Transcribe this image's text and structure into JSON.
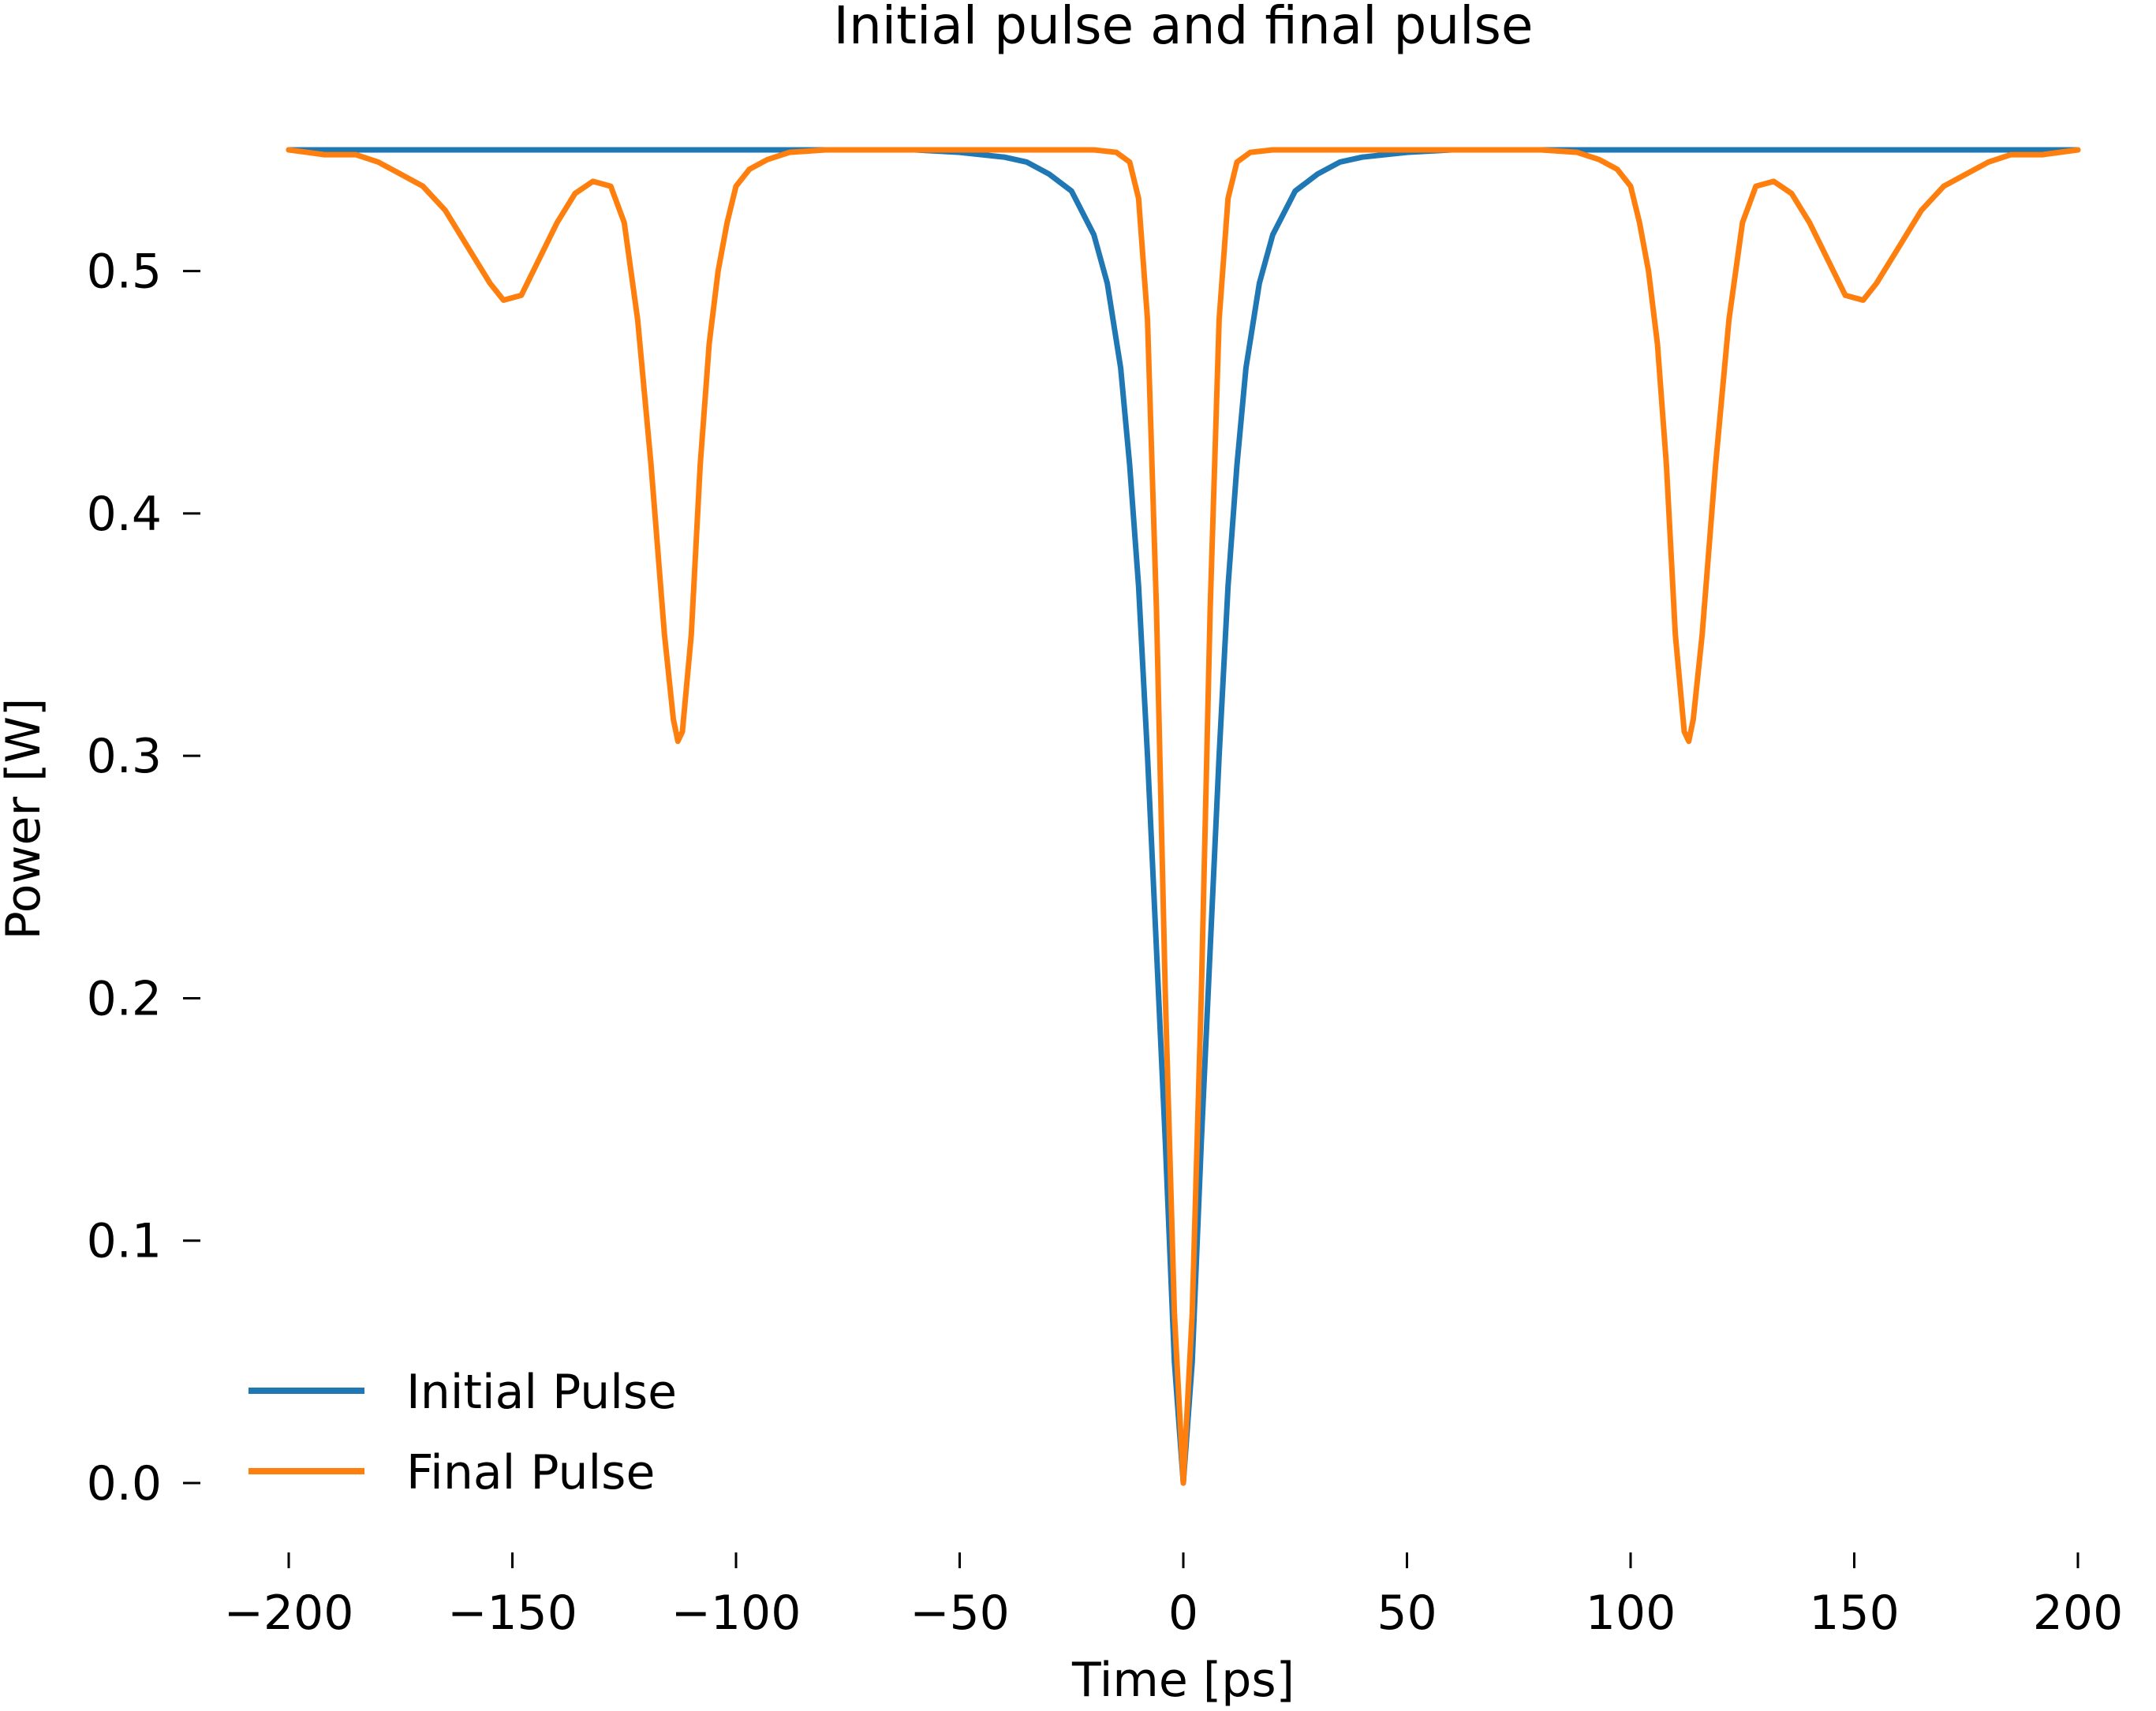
{
  "chart_data": {
    "type": "line",
    "title": "Initial pulse and final pulse",
    "xlabel": "Time [ps]",
    "ylabel": "Power [W]",
    "xlim": [
      -200,
      200
    ],
    "ylim": [
      0.0,
      0.55
    ],
    "grid": false,
    "legend_position": "lower-left",
    "x_ticks": [
      -200,
      -150,
      -100,
      -50,
      0,
      50,
      100,
      150,
      200
    ],
    "x_tick_labels": [
      "−200",
      "−150",
      "−100",
      "−50",
      "0",
      "50",
      "100",
      "150",
      "200"
    ],
    "y_ticks": [
      0.0,
      0.1,
      0.2,
      0.3,
      0.4,
      0.5
    ],
    "y_tick_labels": [
      "0.0",
      "0.1",
      "0.2",
      "0.3",
      "0.4",
      "0.5"
    ],
    "series": [
      {
        "name": "Initial Pulse",
        "color": "#1f77b4",
        "x": [
          -200,
          -100,
          -80,
          -60,
          -50,
          -40,
          -35,
          -30,
          -25,
          -20,
          -17,
          -14,
          -12,
          -10,
          -8,
          -6,
          -4,
          -2,
          0,
          2,
          4,
          6,
          8,
          10,
          12,
          14,
          17,
          20,
          25,
          30,
          35,
          40,
          50,
          60,
          80,
          100,
          200
        ],
        "y": [
          0.55,
          0.55,
          0.55,
          0.55,
          0.549,
          0.547,
          0.545,
          0.54,
          0.533,
          0.515,
          0.495,
          0.46,
          0.42,
          0.37,
          0.3,
          0.22,
          0.14,
          0.05,
          0.0,
          0.05,
          0.14,
          0.22,
          0.3,
          0.37,
          0.42,
          0.46,
          0.495,
          0.515,
          0.533,
          0.54,
          0.545,
          0.547,
          0.549,
          0.55,
          0.55,
          0.55,
          0.55
        ]
      },
      {
        "name": "Final Pulse",
        "color": "#ff7f0e",
        "x": [
          -200,
          -192,
          -185,
          -180,
          -175,
          -170,
          -165,
          -160,
          -155,
          -152,
          -148,
          -144,
          -140,
          -136,
          -132,
          -128,
          -125,
          -122,
          -119,
          -116,
          -114,
          -113,
          -112,
          -110,
          -108,
          -106,
          -104,
          -102,
          -100,
          -97,
          -93,
          -88,
          -80,
          -60,
          -40,
          -20,
          -15,
          -12,
          -10,
          -8,
          -6,
          -4,
          -2,
          0,
          2,
          4,
          6,
          8,
          10,
          12,
          15,
          20,
          40,
          60,
          80,
          88,
          93,
          97,
          100,
          102,
          104,
          106,
          108,
          110,
          112,
          113,
          114,
          116,
          119,
          122,
          125,
          128,
          132,
          136,
          140,
          144,
          148,
          152,
          155,
          160,
          165,
          170,
          175,
          180,
          185,
          192,
          200
        ],
        "y": [
          0.55,
          0.548,
          0.548,
          0.545,
          0.54,
          0.535,
          0.525,
          0.51,
          0.495,
          0.488,
          0.49,
          0.505,
          0.52,
          0.532,
          0.537,
          0.535,
          0.52,
          0.48,
          0.42,
          0.35,
          0.315,
          0.306,
          0.31,
          0.35,
          0.42,
          0.47,
          0.5,
          0.52,
          0.535,
          0.542,
          0.546,
          0.549,
          0.55,
          0.55,
          0.55,
          0.55,
          0.549,
          0.545,
          0.53,
          0.48,
          0.36,
          0.2,
          0.07,
          0.0,
          0.07,
          0.2,
          0.36,
          0.48,
          0.53,
          0.545,
          0.549,
          0.55,
          0.55,
          0.55,
          0.55,
          0.549,
          0.546,
          0.542,
          0.535,
          0.52,
          0.5,
          0.47,
          0.42,
          0.35,
          0.31,
          0.306,
          0.315,
          0.35,
          0.42,
          0.48,
          0.52,
          0.535,
          0.537,
          0.532,
          0.52,
          0.505,
          0.49,
          0.488,
          0.495,
          0.51,
          0.525,
          0.535,
          0.54,
          0.545,
          0.548,
          0.548,
          0.55
        ]
      }
    ]
  }
}
